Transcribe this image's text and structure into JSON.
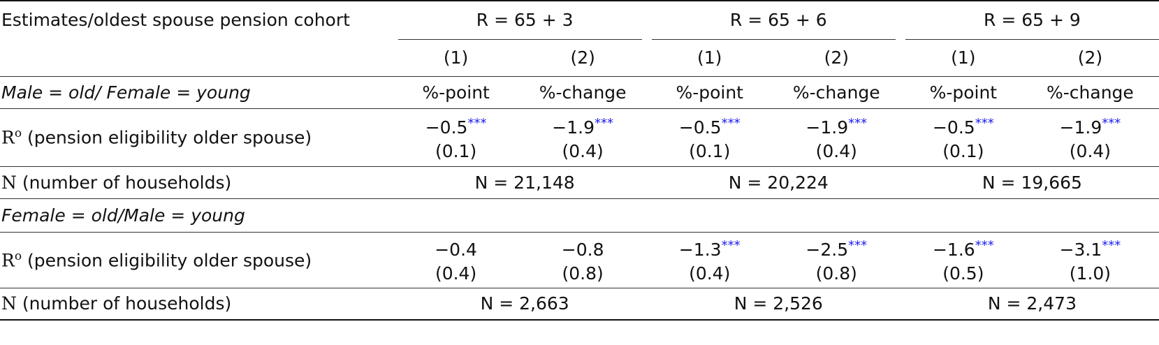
{
  "header": {
    "stub": "Estimates/oldest spouse pension cohort",
    "groups": [
      "R = 65 + 3",
      "R = 65 + 6",
      "R = 65 + 9"
    ],
    "col_numbers": [
      "(1)",
      "(2)",
      "(1)",
      "(2)",
      "(1)",
      "(2)"
    ]
  },
  "panel_a": {
    "title": "Male = old/ Female = young",
    "units": [
      "%-point",
      "%-change",
      "%-point",
      "%-change",
      "%-point",
      "%-change"
    ],
    "coef_row": {
      "symbol": "R",
      "superscript": "o",
      "label": " (pension eligibility older spouse)",
      "estimates": [
        "−0.5",
        "−1.9",
        "−0.5",
        "−1.9",
        "−0.5",
        "−1.9"
      ],
      "stars": [
        "***",
        "***",
        "***",
        "***",
        "***",
        "***"
      ],
      "se": [
        "(0.1)",
        "(0.4)",
        "(0.1)",
        "(0.4)",
        "(0.1)",
        "(0.4)"
      ]
    },
    "n_row": {
      "symbol": "N",
      "label": " (number of households)",
      "values": [
        "N = 21,148",
        "N = 20,224",
        "N = 19,665"
      ]
    }
  },
  "panel_b": {
    "title": "Female = old/Male = young",
    "coef_row": {
      "symbol": "R",
      "superscript": "o",
      "label": " (pension eligibility older spouse)",
      "estimates": [
        "−0.4",
        "−0.8",
        "−1.3",
        "−2.5",
        "−1.6",
        "−3.1"
      ],
      "stars": [
        "",
        "",
        "***",
        "***",
        "***",
        "***"
      ],
      "se": [
        "(0.4)",
        "(0.8)",
        "(0.4)",
        "(0.8)",
        "(0.5)",
        "(1.0)"
      ]
    },
    "n_row": {
      "symbol": "N",
      "label": " (number of households)",
      "values": [
        "N = 2,663",
        "N = 2,526",
        "N = 2,473"
      ]
    }
  },
  "colors": {
    "stars": "#1a1aee",
    "text": "#111111",
    "rules": "#111111"
  }
}
